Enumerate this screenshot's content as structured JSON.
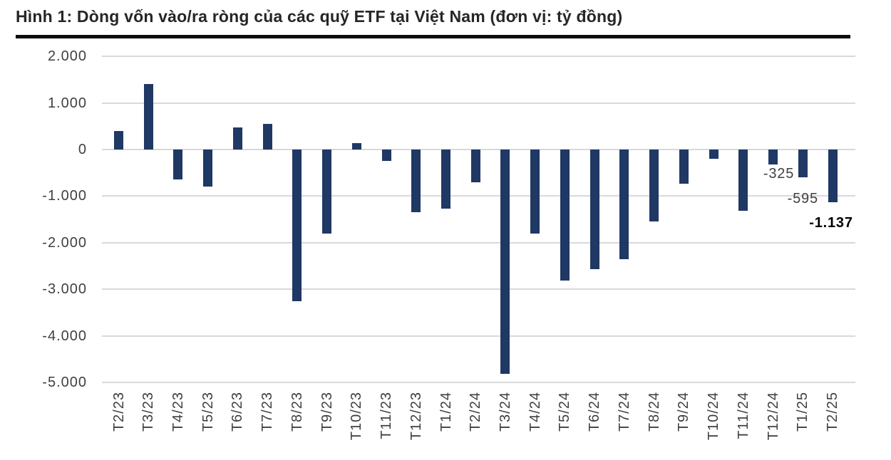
{
  "figure": {
    "title": "Hình 1: Dòng vốn vào/ra ròng của các quỹ ETF tại Việt Nam (đơn vị: tỷ đồng)"
  },
  "chart_data": {
    "type": "bar",
    "title": "Hình 1: Dòng vốn vào/ra ròng của các quỹ ETF tại Việt Nam (đơn vị: tỷ đồng)",
    "unit": "tỷ đồng",
    "categories": [
      "T2/23",
      "T3/23",
      "T4/23",
      "T5/23",
      "T6/23",
      "T7/23",
      "T8/23",
      "T9/23",
      "T10/23",
      "T11/23",
      "T12/23",
      "T1/24",
      "T2/24",
      "T3/24",
      "T4/24",
      "T5/24",
      "T6/24",
      "T7/24",
      "T8/24",
      "T9/24",
      "T10/24",
      "T11/24",
      "T12/24",
      "T1/25",
      "T2/25"
    ],
    "values": [
      390,
      1400,
      -640,
      -800,
      470,
      550,
      -3260,
      -1800,
      130,
      -250,
      -1350,
      -1270,
      -700,
      -4820,
      -1810,
      -2810,
      -2560,
      -2360,
      -1540,
      -730,
      -200,
      -1320,
      -325,
      -595,
      -1137
    ],
    "data_labels": [
      {
        "category": "T12/24",
        "index": 22,
        "text": "-325",
        "bold": false
      },
      {
        "category": "T1/25",
        "index": 23,
        "text": "-595",
        "bold": false
      },
      {
        "category": "T2/25",
        "index": 24,
        "text": "-1.137",
        "bold": true
      }
    ],
    "y_axis": {
      "tick_labels": [
        "2.000",
        "1.000",
        "0",
        "-1.000",
        "-2.000",
        "-3.000",
        "-4.000",
        "-5.000"
      ],
      "tick_values": [
        2000,
        1000,
        0,
        -1000,
        -2000,
        -3000,
        -4000,
        -5000
      ],
      "min": -5000,
      "max": 2000
    },
    "xlabel": "",
    "ylabel": "",
    "grid": true,
    "legend": false,
    "bar_color": "#1f3864",
    "gridline_color": "#d9d9d9",
    "text_color": "#404040"
  }
}
